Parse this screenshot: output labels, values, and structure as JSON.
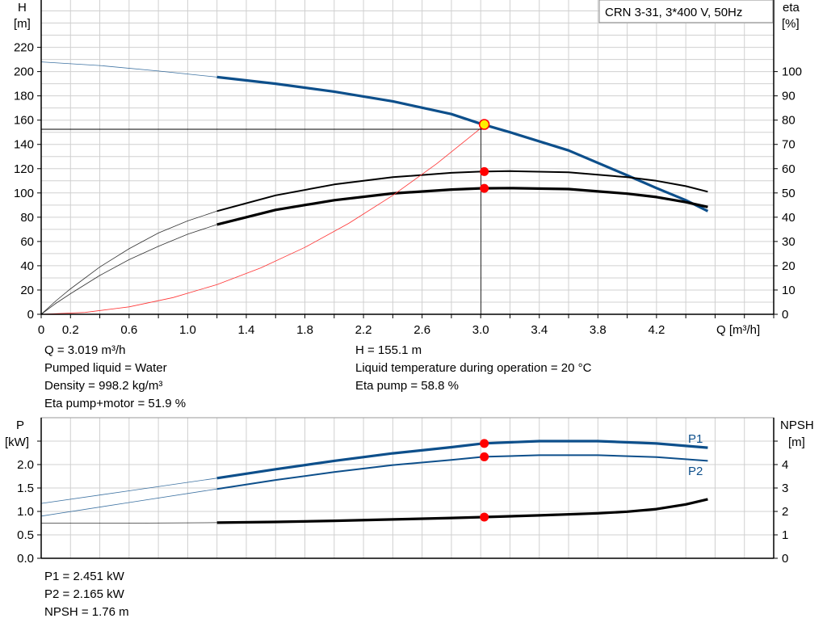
{
  "chart_data": [
    {
      "type": "line",
      "title": "CRN 3-31, 3*400 V, 50Hz",
      "xlabel": "Q [m³/h]",
      "ylabel_left": {
        "name": "H",
        "unit": "[m]"
      },
      "ylabel_right": {
        "name": "eta",
        "unit": "[%]"
      },
      "xlim": [
        0,
        5.0
      ],
      "ylim_left": [
        0,
        259
      ],
      "ylim_right": [
        0,
        129.5
      ],
      "x_ticks": [
        "0",
        "0.2",
        "0.6",
        "1.0",
        "1.4",
        "1.8",
        "2.2",
        "2.6",
        "3.0",
        "3.4",
        "3.8",
        "4.2"
      ],
      "y_ticks_left": [
        "0",
        "20",
        "40",
        "60",
        "80",
        "100",
        "120",
        "140",
        "160",
        "180",
        "200",
        "220"
      ],
      "y_ticks_right": [
        "0",
        "10",
        "20",
        "30",
        "40",
        "50",
        "60",
        "70",
        "80",
        "90",
        "100"
      ],
      "grid": true,
      "series": [
        {
          "id": "head",
          "axis": "left",
          "color": "#0d4f8b",
          "q": [
            0,
            0.4,
            0.8,
            1.2,
            1.6,
            2.0,
            2.4,
            2.8,
            3.0,
            3.2,
            3.6,
            4.0,
            4.2,
            4.4,
            4.55
          ],
          "values": [
            208,
            205,
            200.5,
            195.5,
            190,
            183.5,
            175.5,
            165,
            157,
            150,
            135,
            114.5,
            104,
            94,
            85
          ],
          "thin_until": 1.2
        },
        {
          "id": "eta-pump",
          "axis": "right",
          "color": "#000000",
          "q": [
            0,
            0.1,
            0.2,
            0.4,
            0.6,
            0.8,
            1.0,
            1.2,
            1.6,
            2.0,
            2.4,
            2.8,
            3.0,
            3.2,
            3.6,
            4.0,
            4.2,
            4.4,
            4.55
          ],
          "values": [
            0,
            5.5,
            10.5,
            19.5,
            27,
            33.5,
            38.5,
            42.5,
            49,
            53.5,
            56.5,
            58.3,
            58.8,
            59,
            58.5,
            56.5,
            55,
            52.8,
            50.5
          ],
          "thin_until": 1.2
        },
        {
          "id": "eta-pump-motor",
          "axis": "right",
          "color": "#000000",
          "q": [
            0,
            0.1,
            0.2,
            0.4,
            0.6,
            0.8,
            1.0,
            1.2,
            1.6,
            2.0,
            2.4,
            2.8,
            3.0,
            3.2,
            3.6,
            4.0,
            4.2,
            4.4,
            4.55
          ],
          "values": [
            0,
            4.5,
            8.5,
            16,
            22.5,
            28,
            33,
            37,
            43,
            47,
            49.8,
            51.4,
            51.9,
            52,
            51.6,
            49.7,
            48.3,
            46.2,
            44.2
          ],
          "thin_until": 1.2
        },
        {
          "id": "system-curve",
          "axis": "left",
          "color": "#ff3333",
          "q": [
            0,
            0.3,
            0.6,
            0.9,
            1.2,
            1.5,
            1.8,
            2.1,
            2.4,
            2.7,
            3.019
          ],
          "values": [
            0,
            1.5,
            6.1,
            13.8,
            24.5,
            38.3,
            55.1,
            75.0,
            98.0,
            124.1,
            155.1
          ],
          "thin_until": 99
        }
      ],
      "operating_point": {
        "q": 3.019,
        "h": 155.1,
        "eta_pump": 58.8,
        "eta_pump_motor": 51.9
      }
    },
    {
      "type": "line",
      "xlim": [
        0,
        5.0
      ],
      "ylabel_left": {
        "name": "P",
        "unit": "[kW]"
      },
      "ylabel_right": {
        "name": "NPSH",
        "unit": "[m]"
      },
      "ylim_left": [
        0,
        3.0
      ],
      "ylim_right": [
        0,
        6.0
      ],
      "y_ticks_left": [
        "0.0",
        "0.5",
        "1.0",
        "1.5",
        "2.0"
      ],
      "y_ticks_right": [
        "0",
        "1",
        "2",
        "3",
        "4"
      ],
      "grid": true,
      "series": [
        {
          "id": "p1",
          "name": "P1",
          "axis": "left",
          "color": "#0d4f8b",
          "q": [
            0,
            0.6,
            1.2,
            1.6,
            2.0,
            2.4,
            2.8,
            3.019,
            3.4,
            3.8,
            4.2,
            4.55
          ],
          "values": [
            1.17,
            1.44,
            1.71,
            1.9,
            2.08,
            2.24,
            2.37,
            2.451,
            2.5,
            2.5,
            2.45,
            2.36
          ],
          "thin_until": 1.2
        },
        {
          "id": "p2",
          "name": "P2",
          "axis": "left",
          "color": "#0d4f8b",
          "q": [
            0,
            0.6,
            1.2,
            1.6,
            2.0,
            2.4,
            2.8,
            3.019,
            3.4,
            3.8,
            4.2,
            4.55
          ],
          "values": [
            0.9,
            1.19,
            1.48,
            1.67,
            1.84,
            1.99,
            2.1,
            2.165,
            2.2,
            2.2,
            2.16,
            2.08
          ],
          "thin_until": 1.2
        },
        {
          "id": "npsh",
          "axis": "right",
          "color": "#000000",
          "q": [
            0,
            0.6,
            1.2,
            1.6,
            2.0,
            2.4,
            2.8,
            3.019,
            3.4,
            3.8,
            4.0,
            4.2,
            4.4,
            4.55
          ],
          "values": [
            1.5,
            1.5,
            1.52,
            1.55,
            1.6,
            1.66,
            1.72,
            1.76,
            1.83,
            1.92,
            1.99,
            2.1,
            2.3,
            2.52
          ],
          "thin_until": 1.2
        }
      ],
      "operating_point": {
        "q": 3.019,
        "p1": 2.451,
        "p2": 2.165,
        "npsh": 1.76
      }
    }
  ],
  "info_top_left": [
    "Q = 3.019 m³/h",
    "Pumped liquid = Water",
    "Density = 998.2 kg/m³",
    "Eta pump+motor = 51.9 %"
  ],
  "info_top_right": [
    "H = 155.1 m",
    "Liquid temperature during operation = 20 °C",
    "Eta pump = 58.8 %"
  ],
  "info_bottom": [
    "P1 = 2.451 kW",
    "P2 = 2.165 kW",
    "NPSH = 1.76 m"
  ]
}
